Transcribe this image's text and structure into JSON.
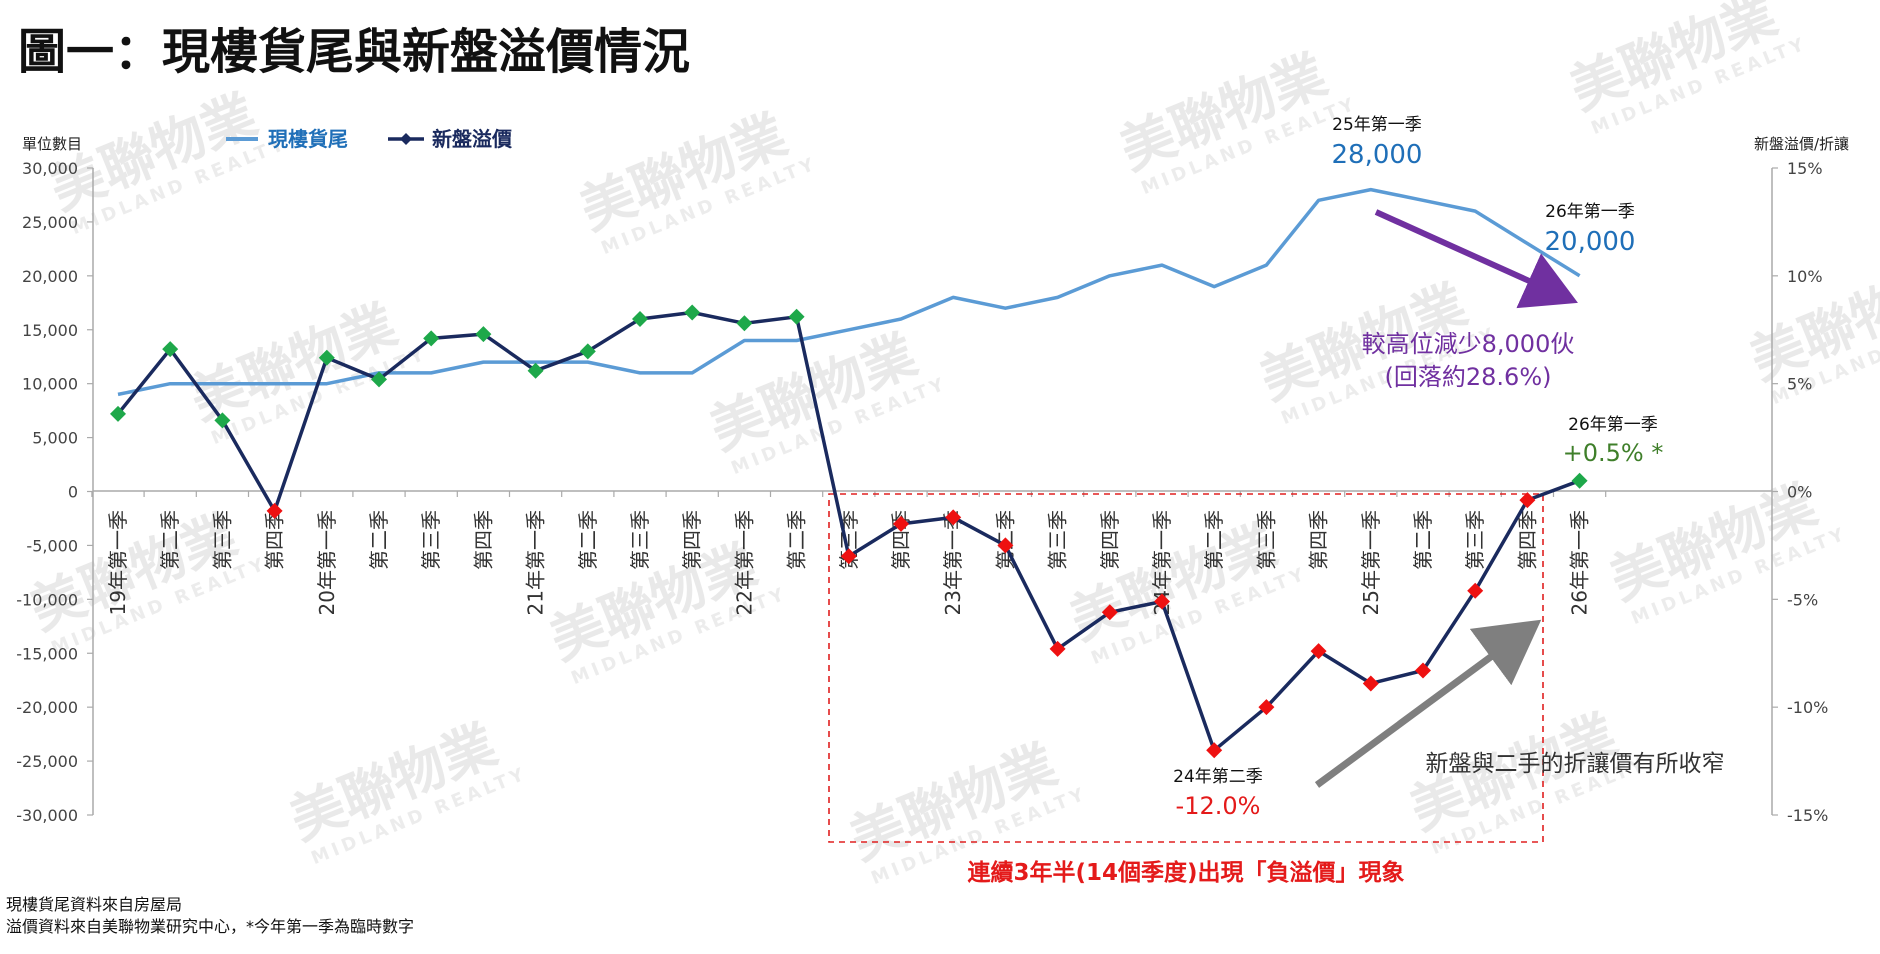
{
  "title": "圖一：現樓貨尾與新盤溢價情況",
  "legend": {
    "stock": "現樓貨尾",
    "premium": "新盤溢價"
  },
  "watermark": {
    "brand": "美聯物業",
    "sub": "MIDLAND REALTY"
  },
  "source_lines": [
    "現樓貨尾資料來自房屋局",
    "溢價資料來自美聯物業研究中心，*今年第一季為臨時數字"
  ],
  "annotations": {
    "peak_quarter": "25年第一季",
    "peak_value": "28,000",
    "latest_stock_quarter": "26年第一季",
    "latest_stock_value": "20,000",
    "decline_line1": "較高位減少8,000伙",
    "decline_line2": "(回落約28.6%)",
    "latest_premium_quarter": "26年第一季",
    "latest_premium_value": "+0.5% *",
    "low_quarter": "24年第二季",
    "low_value": "-12.0%",
    "narrowing": "新盤與二手的折讓價有所收窄",
    "negative_run": "連續3年半(14個季度)出現「負溢價」現象"
  },
  "colors": {
    "stock": "#5b9bd5",
    "premium": "#1a2a5e",
    "marker_pos": "#1ea84a",
    "marker_neg": "#ee1111",
    "purple": "#7030a0",
    "green_text": "#3f7f2a",
    "red_text": "#e41a1a",
    "blue_text": "#1f6fb8",
    "gray_arrow": "#7f7f7f"
  },
  "chart_data": {
    "type": "line",
    "title": "圖一：現樓貨尾與新盤溢價情況",
    "y_left_label": "單位數目",
    "y_right_label": "新盤溢價/折讓",
    "y_left_range": [
      -30000,
      30000
    ],
    "y_right_range": [
      -15,
      15
    ],
    "y_left_ticks": [
      "30,000",
      "25,000",
      "20,000",
      "15,000",
      "10,000",
      "5,000",
      "0",
      "-5,000",
      "-10,000",
      "-15,000",
      "-20,000",
      "-25,000",
      "-30,000"
    ],
    "y_right_ticks": [
      "15%",
      "10%",
      "5%",
      "0%",
      "-5%",
      "-10%",
      "-15%"
    ],
    "categories": [
      "19年第一季",
      "第二季",
      "第三季",
      "第四季",
      "20年第一季",
      "第二季",
      "第三季",
      "第四季",
      "21年第一季",
      "第二季",
      "第三季",
      "第四季",
      "22年第一季",
      "第二季",
      "第三季",
      "第四季",
      "23年第一季",
      "第二季",
      "第三季",
      "第四季",
      "24年第一季",
      "第二季",
      "第三季",
      "第四季",
      "25年第一季",
      "第二季",
      "第三季",
      "第四季",
      "26年第一季"
    ],
    "series": [
      {
        "name": "現樓貨尾",
        "axis": "left",
        "values": [
          9000,
          10000,
          10000,
          10000,
          10000,
          11000,
          11000,
          12000,
          12000,
          12000,
          11000,
          11000,
          14000,
          14000,
          15000,
          16000,
          18000,
          17000,
          18000,
          20000,
          21000,
          19000,
          21000,
          27000,
          28000,
          27000,
          26000,
          23000,
          20000
        ]
      },
      {
        "name": "新盤溢價",
        "axis": "right",
        "unit": "%",
        "values": [
          3.6,
          6.6,
          3.3,
          -0.9,
          6.2,
          5.2,
          7.1,
          7.3,
          5.6,
          6.5,
          8.0,
          8.3,
          7.8,
          8.1,
          -3.0,
          -1.5,
          -1.2,
          -2.5,
          -7.3,
          -5.6,
          -5.1,
          -12.0,
          -10.0,
          -7.4,
          -8.9,
          -8.3,
          -4.6,
          -0.4,
          0.5
        ]
      }
    ]
  }
}
